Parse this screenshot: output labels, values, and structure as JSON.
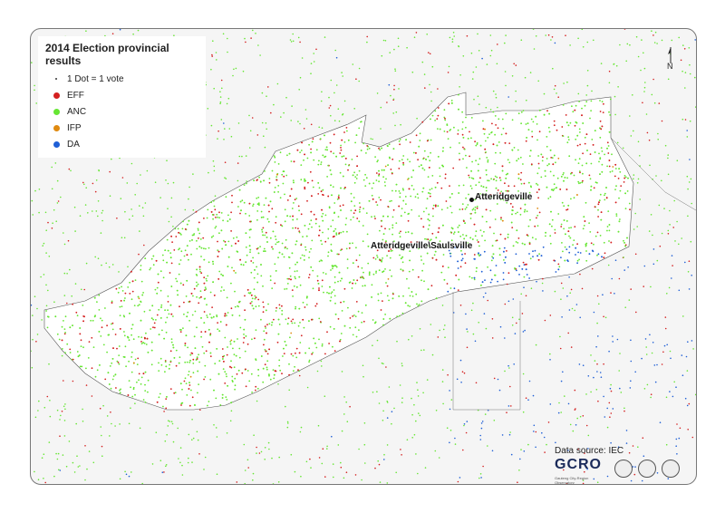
{
  "legend": {
    "title": "2014 Election provincial results",
    "items": [
      {
        "label": "1 Dot = 1 vote",
        "symbol": "tiny"
      },
      {
        "label": "EFF",
        "color": "#d42020"
      },
      {
        "label": "ANC",
        "color": "#66e633"
      },
      {
        "label": "IFP",
        "color": "#e08a10"
      },
      {
        "label": "DA",
        "color": "#1f5fd6"
      }
    ]
  },
  "places": {
    "atteridgeville": "Atteridgeville",
    "atteridgeville_saulsville": "Atteridgeville\\Saulsville"
  },
  "north_label": "N",
  "data_source": "Data source: IEC",
  "logo": {
    "name": "GCRO",
    "subtitle": "Gauteng City-Region Observatory"
  },
  "colors": {
    "background": "#f5f5f5",
    "boundary": "#555555"
  }
}
